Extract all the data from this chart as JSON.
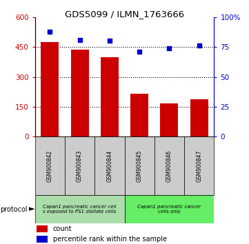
{
  "title": "GDS5099 / ILMN_1763666",
  "categories": [
    "GSM900842",
    "GSM900843",
    "GSM900844",
    "GSM900845",
    "GSM900846",
    "GSM900847"
  ],
  "bar_values": [
    475,
    435,
    400,
    215,
    168,
    188
  ],
  "percentile_values": [
    88,
    81,
    80,
    71,
    74,
    76
  ],
  "bar_color": "#cc0000",
  "dot_color": "#0000cc",
  "ylim_left": [
    0,
    600
  ],
  "ylim_right": [
    0,
    100
  ],
  "yticks_left": [
    0,
    150,
    300,
    450,
    600
  ],
  "yticks_right": [
    0,
    25,
    50,
    75,
    100
  ],
  "ytick_labels_left": [
    "0",
    "150",
    "300",
    "450",
    "600"
  ],
  "ytick_labels_right": [
    "0",
    "25",
    "50",
    "75",
    "100%"
  ],
  "grid_lines": [
    150,
    300,
    450
  ],
  "protocol_label1": "Capan1 pancreatic cancer cell\ns exposed to PS1 stellate cells",
  "protocol_label2": "Capan1 pancreatic cancer\ncells only",
  "protocol_color1": "#aaddaa",
  "protocol_color2": "#66ee66",
  "legend_label1": "count",
  "legend_label2": "percentile rank within the sample",
  "sample_box_color": "#cccccc",
  "background_color": "#ffffff"
}
